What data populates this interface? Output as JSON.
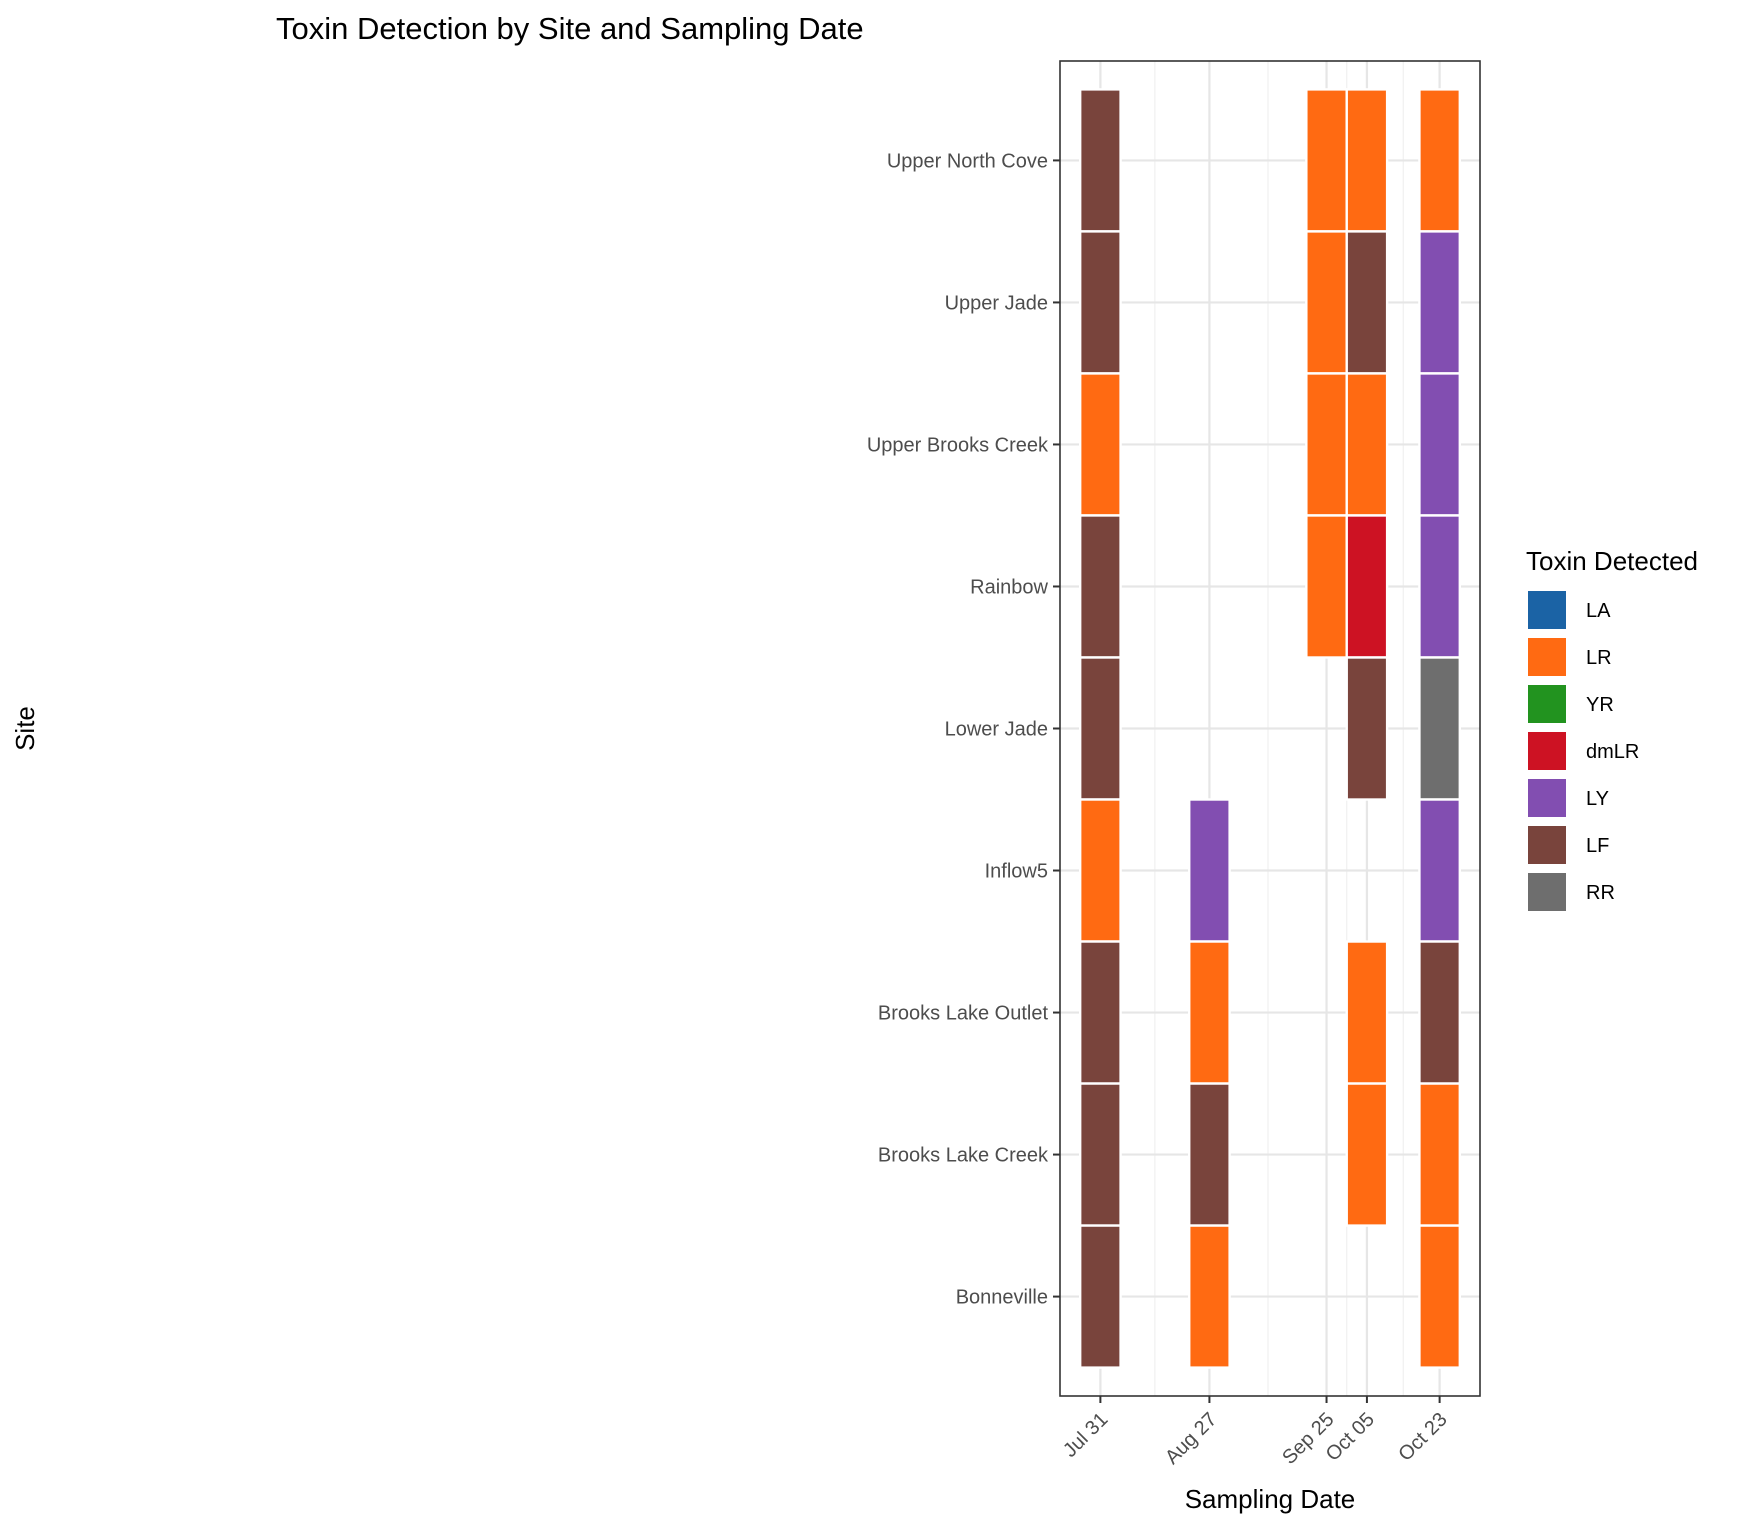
{
  "chart_data": {
    "type": "heatmap",
    "title": "Toxin Detection by Site and Sampling Date",
    "xlabel": "Sampling Date",
    "ylabel": "Site",
    "x_ticks": [
      "Jul 31",
      "Aug 27",
      "Sep 25",
      "Oct 05",
      "Oct 23"
    ],
    "x_tick_days": [
      0,
      27,
      56,
      66,
      84
    ],
    "xlim_days": [
      -10,
      94
    ],
    "tile_width_days": 10,
    "y_categories": [
      "Bonneville",
      "Brooks Lake Creek",
      "Brooks Lake Outlet",
      "Inflow5",
      "Lower Jade",
      "Rainbow",
      "Upper Brooks Creek",
      "Upper Jade",
      "Upper North Cove"
    ],
    "grid": true,
    "legend": {
      "title": "Toxin Detected",
      "placement": "right",
      "entries": [
        {
          "label": "LA",
          "color": "#1b63a5"
        },
        {
          "label": "LR",
          "color": "#ff6a12"
        },
        {
          "label": "YR",
          "color": "#22931f"
        },
        {
          "label": "dmLR",
          "color": "#cd1223"
        },
        {
          "label": "LY",
          "color": "#824eb1"
        },
        {
          "label": "LF",
          "color": "#79443c"
        },
        {
          "label": "RR",
          "color": "#6e6e6e"
        }
      ]
    },
    "tiles": [
      {
        "date": "Jul 31",
        "site": "Upper North Cove",
        "toxin": "LF"
      },
      {
        "date": "Jul 31",
        "site": "Upper Jade",
        "toxin": "LF"
      },
      {
        "date": "Jul 31",
        "site": "Upper Brooks Creek",
        "toxin": "LR"
      },
      {
        "date": "Jul 31",
        "site": "Rainbow",
        "toxin": "LF"
      },
      {
        "date": "Jul 31",
        "site": "Lower Jade",
        "toxin": "LF"
      },
      {
        "date": "Jul 31",
        "site": "Inflow5",
        "toxin": "LR"
      },
      {
        "date": "Jul 31",
        "site": "Brooks Lake Outlet",
        "toxin": "LF"
      },
      {
        "date": "Jul 31",
        "site": "Brooks Lake Creek",
        "toxin": "LF"
      },
      {
        "date": "Jul 31",
        "site": "Bonneville",
        "toxin": "LF"
      },
      {
        "date": "Aug 27",
        "site": "Inflow5",
        "toxin": "LY"
      },
      {
        "date": "Aug 27",
        "site": "Brooks Lake Outlet",
        "toxin": "LR"
      },
      {
        "date": "Aug 27",
        "site": "Brooks Lake Creek",
        "toxin": "LF"
      },
      {
        "date": "Aug 27",
        "site": "Bonneville",
        "toxin": "LR"
      },
      {
        "date": "Sep 25",
        "site": "Upper North Cove",
        "toxin": "LR"
      },
      {
        "date": "Sep 25",
        "site": "Upper Jade",
        "toxin": "LR"
      },
      {
        "date": "Sep 25",
        "site": "Upper Brooks Creek",
        "toxin": "LR"
      },
      {
        "date": "Sep 25",
        "site": "Rainbow",
        "toxin": "LR"
      },
      {
        "date": "Oct 05",
        "site": "Upper North Cove",
        "toxin": "LR"
      },
      {
        "date": "Oct 05",
        "site": "Upper Jade",
        "toxin": "LF"
      },
      {
        "date": "Oct 05",
        "site": "Upper Brooks Creek",
        "toxin": "LR"
      },
      {
        "date": "Oct 05",
        "site": "Rainbow",
        "toxin": "dmLR"
      },
      {
        "date": "Oct 05",
        "site": "Lower Jade",
        "toxin": "LF"
      },
      {
        "date": "Oct 05",
        "site": "Brooks Lake Outlet",
        "toxin": "LR"
      },
      {
        "date": "Oct 05",
        "site": "Brooks Lake Creek",
        "toxin": "LR"
      },
      {
        "date": "Oct 23",
        "site": "Upper North Cove",
        "toxin": "LR"
      },
      {
        "date": "Oct 23",
        "site": "Upper Jade",
        "toxin": "LY"
      },
      {
        "date": "Oct 23",
        "site": "Upper Brooks Creek",
        "toxin": "LY"
      },
      {
        "date": "Oct 23",
        "site": "Rainbow",
        "toxin": "LY"
      },
      {
        "date": "Oct 23",
        "site": "Lower Jade",
        "toxin": "RR"
      },
      {
        "date": "Oct 23",
        "site": "Inflow5",
        "toxin": "LY"
      },
      {
        "date": "Oct 23",
        "site": "Brooks Lake Outlet",
        "toxin": "LF"
      },
      {
        "date": "Oct 23",
        "site": "Brooks Lake Creek",
        "toxin": "LR"
      },
      {
        "date": "Oct 23",
        "site": "Bonneville",
        "toxin": "LR"
      }
    ]
  }
}
